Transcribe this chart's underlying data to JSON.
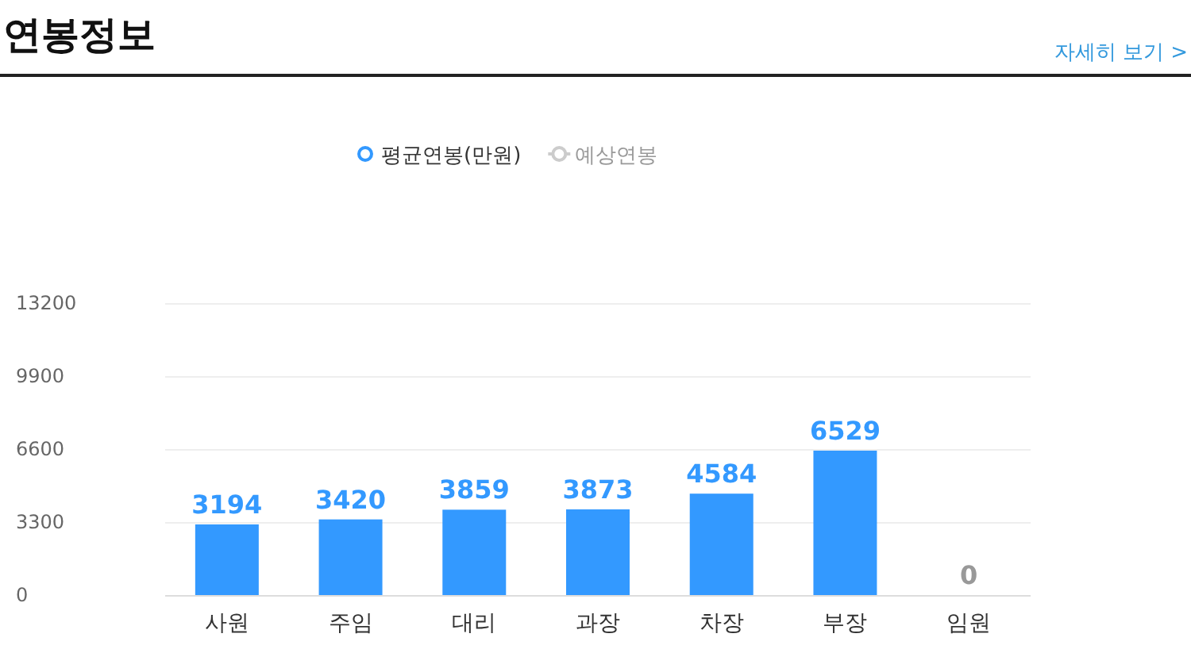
{
  "chart_data": {
    "type": "bar",
    "title": "연봉정보",
    "annotations": [
      "자세히 보기 >"
    ],
    "categories": [
      "사원",
      "주임",
      "대리",
      "과장",
      "차장",
      "부장",
      "임원"
    ],
    "series": [
      {
        "name": "평균연봉(만원)",
        "color": "#3399ff",
        "values": [
          3194,
          3420,
          3859,
          3873,
          4584,
          6529,
          0
        ]
      },
      {
        "name": "예상연봉",
        "type": "line",
        "color": "#cccccc",
        "values": [
          null,
          null,
          null,
          null,
          null,
          null,
          null
        ]
      }
    ],
    "ylim": [
      0,
      13200
    ],
    "yticks": [
      0,
      3300,
      6600,
      9900,
      13200
    ],
    "grid": "y",
    "legend": "top",
    "data_labels": true
  }
}
